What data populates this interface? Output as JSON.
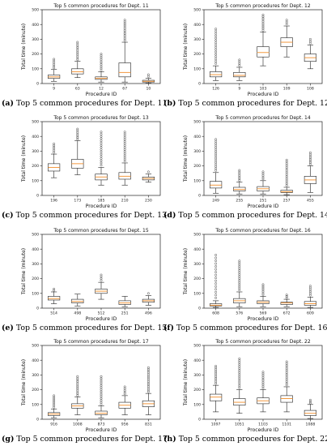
{
  "colors": {
    "box": "#222222",
    "median": "#f28e2b",
    "outlier": "#333333"
  },
  "chart_data": [
    {
      "type": "box",
      "title": "Top 5 common procedures for Dept. 11",
      "caption_tag": "(a)",
      "caption_text": "Top 5 common procedures for Dept. 11",
      "xlabel": "Procedure ID",
      "ylabel": "Total time (minute)",
      "ylim": [
        0,
        500
      ],
      "yticks": [
        0,
        100,
        200,
        300,
        400,
        500
      ],
      "categories": [
        "9",
        "63",
        "12",
        "67",
        "10"
      ],
      "boxes": [
        {
          "min": 15,
          "q1": 35,
          "median": 45,
          "q3": 58,
          "max": 95,
          "outlier_max": 165
        },
        {
          "min": 40,
          "q1": 65,
          "median": 80,
          "q3": 100,
          "max": 150,
          "outlier_max": 280
        },
        {
          "min": 10,
          "q1": 28,
          "median": 35,
          "q3": 45,
          "max": 80,
          "outlier_max": 200
        },
        {
          "min": 10,
          "q1": 45,
          "median": 75,
          "q3": 140,
          "max": 280,
          "outlier_max": 430
        },
        {
          "min": 3,
          "q1": 10,
          "median": 15,
          "q3": 22,
          "max": 35,
          "outlier_max": 60
        }
      ]
    },
    {
      "type": "box",
      "title": "Top 5 common procedures for Dept. 12",
      "caption_tag": "(b)",
      "caption_text": "Top 5 common procedures for Dept. 12",
      "xlabel": "Procedure ID",
      "ylabel": "Total time (minute)",
      "ylim": [
        0,
        500
      ],
      "yticks": [
        0,
        100,
        200,
        300,
        400,
        500
      ],
      "categories": [
        "126",
        "9",
        "103",
        "109",
        "108"
      ],
      "boxes": [
        {
          "min": 20,
          "q1": 45,
          "median": 60,
          "q3": 80,
          "max": 120,
          "outlier_max": 370
        },
        {
          "min": 20,
          "q1": 45,
          "median": 55,
          "q3": 75,
          "max": 110,
          "outlier_max": 160
        },
        {
          "min": 120,
          "q1": 180,
          "median": 210,
          "q3": 250,
          "max": 350,
          "outlier_max": 465
        },
        {
          "min": 180,
          "q1": 250,
          "median": 280,
          "q3": 310,
          "max": 390,
          "outlier_max": 430
        },
        {
          "min": 100,
          "q1": 150,
          "median": 175,
          "q3": 200,
          "max": 260,
          "outlier_max": 300
        }
      ]
    },
    {
      "type": "box",
      "title": "Top 5 common procedures for Dept. 13",
      "caption_tag": "(c)",
      "caption_text": "Top 5 common procedures for Dept. 13",
      "xlabel": "Procedure ID",
      "ylabel": "Total time (minute)",
      "ylim": [
        0,
        500
      ],
      "yticks": [
        0,
        100,
        200,
        300,
        400,
        500
      ],
      "categories": [
        "196",
        "173",
        "185",
        "210",
        "230"
      ],
      "boxes": [
        {
          "min": 120,
          "q1": 165,
          "median": 190,
          "q3": 215,
          "max": 280,
          "outlier_max": 350
        },
        {
          "min": 140,
          "q1": 185,
          "median": 215,
          "q3": 245,
          "max": 370,
          "outlier_max": 450
        },
        {
          "min": 70,
          "q1": 105,
          "median": 125,
          "q3": 145,
          "max": 190,
          "outlier_max": 430
        },
        {
          "min": 70,
          "q1": 110,
          "median": 130,
          "q3": 155,
          "max": 220,
          "outlier_max": 430
        },
        {
          "min": 90,
          "q1": 105,
          "median": 115,
          "q3": 125,
          "max": 145,
          "outlier_max": 160
        }
      ]
    },
    {
      "type": "box",
      "title": "Top 5 common procedures for Dept. 14",
      "caption_tag": "(d)",
      "caption_text": "Top 5 common procedures for Dept. 14",
      "xlabel": "Procedure ID",
      "ylabel": "Total time (minute)",
      "ylim": [
        0,
        500
      ],
      "yticks": [
        0,
        100,
        200,
        300,
        400,
        500
      ],
      "categories": [
        "249",
        "255",
        "251",
        "257",
        "455"
      ],
      "boxes": [
        {
          "min": 15,
          "q1": 50,
          "median": 70,
          "q3": 95,
          "max": 155,
          "outlier_max": 380
        },
        {
          "min": 10,
          "q1": 30,
          "median": 40,
          "q3": 55,
          "max": 90,
          "outlier_max": 170
        },
        {
          "min": 10,
          "q1": 30,
          "median": 45,
          "q3": 60,
          "max": 100,
          "outlier_max": 160
        },
        {
          "min": 5,
          "q1": 20,
          "median": 25,
          "q3": 35,
          "max": 55,
          "outlier_max": 240
        },
        {
          "min": 20,
          "q1": 80,
          "median": 105,
          "q3": 130,
          "max": 200,
          "outlier_max": 290
        }
      ]
    },
    {
      "type": "box",
      "title": "Top 5 common procedures for Dept. 15",
      "caption_tag": "(e)",
      "caption_text": "Top 5 common procedures for Dept. 15",
      "xlabel": "Procedure ID",
      "ylabel": "Total time (minute)",
      "ylim": [
        0,
        500
      ],
      "yticks": [
        0,
        100,
        200,
        300,
        400,
        500
      ],
      "categories": [
        "514",
        "498",
        "512",
        "251",
        "496"
      ],
      "boxes": [
        {
          "min": 30,
          "q1": 55,
          "median": 65,
          "q3": 80,
          "max": 110,
          "outlier_max": 130
        },
        {
          "min": 15,
          "q1": 35,
          "median": 45,
          "q3": 60,
          "max": 95,
          "outlier_max": 95
        },
        {
          "min": 60,
          "q1": 100,
          "median": 115,
          "q3": 130,
          "max": 175,
          "outlier_max": 225
        },
        {
          "min": 10,
          "q1": 25,
          "median": 35,
          "q3": 50,
          "max": 80,
          "outlier_max": 80
        },
        {
          "min": 20,
          "q1": 40,
          "median": 50,
          "q3": 60,
          "max": 85,
          "outlier_max": 100
        }
      ]
    },
    {
      "type": "box",
      "title": "Top 5 common procedures for Dept. 16",
      "caption_tag": "(f)",
      "caption_text": "Top 5 common procedures for Dept. 16",
      "xlabel": "Procedure ID",
      "ylabel": "Total time (minute)",
      "ylim": [
        0,
        500
      ],
      "yticks": [
        0,
        100,
        200,
        300,
        400,
        500
      ],
      "categories": [
        "608",
        "576",
        "569",
        "672",
        "609"
      ],
      "boxes": [
        {
          "min": 5,
          "q1": 15,
          "median": 20,
          "q3": 30,
          "max": 50,
          "outlier_max": 360
        },
        {
          "min": 10,
          "q1": 35,
          "median": 50,
          "q3": 65,
          "max": 110,
          "outlier_max": 320
        },
        {
          "min": 10,
          "q1": 30,
          "median": 40,
          "q3": 50,
          "max": 80,
          "outlier_max": 160
        },
        {
          "min": 10,
          "q1": 25,
          "median": 35,
          "q3": 40,
          "max": 60,
          "outlier_max": 90
        },
        {
          "min": 5,
          "q1": 20,
          "median": 30,
          "q3": 45,
          "max": 75,
          "outlier_max": 150
        }
      ]
    },
    {
      "type": "box",
      "title": "Top 5 common procedures for Dept. 17",
      "caption_tag": "(g)",
      "caption_text": "Top 5 common procedures for Dept. 17",
      "xlabel": "Procedure ID",
      "ylabel": "Total time (minute)",
      "ylim": [
        0,
        500
      ],
      "yticks": [
        0,
        100,
        200,
        300,
        400,
        500
      ],
      "categories": [
        "916",
        "1008",
        "873",
        "956",
        "831"
      ],
      "boxes": [
        {
          "min": 10,
          "q1": 25,
          "median": 35,
          "q3": 45,
          "max": 70,
          "outlier_max": 160
        },
        {
          "min": 30,
          "q1": 75,
          "median": 90,
          "q3": 105,
          "max": 150,
          "outlier_max": 290
        },
        {
          "min": 10,
          "q1": 30,
          "median": 40,
          "q3": 55,
          "max": 90,
          "outlier_max": 290
        },
        {
          "min": 30,
          "q1": 75,
          "median": 95,
          "q3": 115,
          "max": 160,
          "outlier_max": 220
        },
        {
          "min": 30,
          "q1": 85,
          "median": 105,
          "q3": 125,
          "max": 175,
          "outlier_max": 350
        }
      ]
    },
    {
      "type": "box",
      "title": "Top 5 common procedures for Dept. 22",
      "caption_tag": "(h)",
      "caption_text": "Top 5 common procedures for Dept. 22",
      "xlabel": "Procedure ID",
      "ylabel": "Total time (minute)",
      "ylim": [
        0,
        500
      ],
      "yticks": [
        0,
        100,
        200,
        300,
        400,
        500
      ],
      "categories": [
        "1097",
        "1051",
        "1103",
        "1101",
        "1088"
      ],
      "boxes": [
        {
          "min": 50,
          "q1": 125,
          "median": 150,
          "q3": 170,
          "max": 230,
          "outlier_max": 360
        },
        {
          "min": 40,
          "q1": 95,
          "median": 115,
          "q3": 140,
          "max": 200,
          "outlier_max": 410
        },
        {
          "min": 50,
          "q1": 105,
          "median": 125,
          "q3": 145,
          "max": 200,
          "outlier_max": 320
        },
        {
          "min": 50,
          "q1": 115,
          "median": 140,
          "q3": 160,
          "max": 220,
          "outlier_max": 390
        },
        {
          "min": 5,
          "q1": 25,
          "median": 40,
          "q3": 60,
          "max": 100,
          "outlier_max": 130
        }
      ]
    }
  ]
}
